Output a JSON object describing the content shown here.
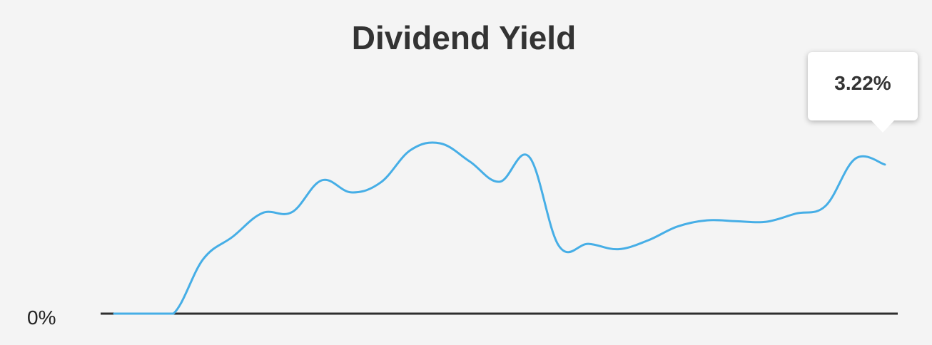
{
  "chart_data": {
    "type": "line",
    "title": "Dividend Yield",
    "xlabel": "",
    "ylabel": "",
    "y_ticks": [
      "0%"
    ],
    "ylim": [
      0,
      5.0
    ],
    "grid": false,
    "series": [
      {
        "color": "#46aee6",
        "values": [
          0.0,
          0.0,
          0.0,
          1.13,
          1.6,
          2.09,
          2.11,
          2.77,
          2.52,
          2.73,
          3.4,
          3.54,
          3.16,
          2.74,
          3.26,
          1.41,
          1.45,
          1.34,
          1.52,
          1.81,
          1.94,
          1.92,
          1.91,
          2.08,
          2.24,
          3.22,
          3.1
        ]
      }
    ]
  },
  "tooltip": {
    "value_label": "3.22%"
  }
}
